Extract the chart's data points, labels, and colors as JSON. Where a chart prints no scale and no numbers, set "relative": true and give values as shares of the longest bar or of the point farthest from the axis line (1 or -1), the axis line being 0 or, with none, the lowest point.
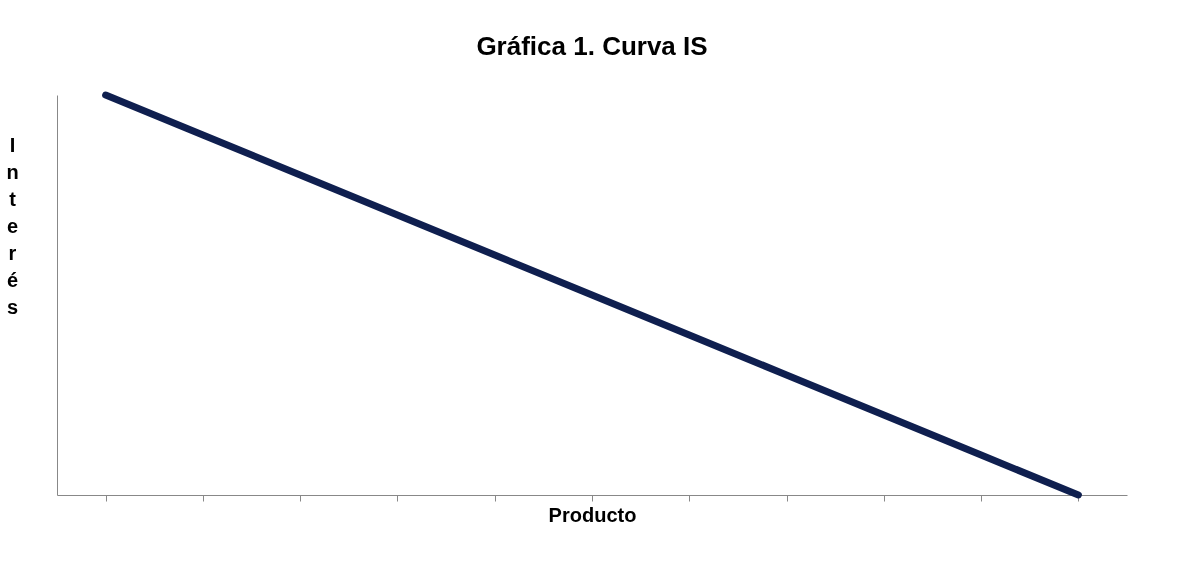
{
  "chart_data": {
    "type": "line",
    "title": "Gráfica 1. Curva IS",
    "xlabel": "Producto",
    "ylabel": "Interés",
    "relative": true,
    "tick_labels": false,
    "categories": [
      null,
      null,
      null,
      null,
      null,
      null,
      null,
      null,
      null,
      null,
      null
    ],
    "series": [
      {
        "color": "#0f1f4f",
        "values": [
          1,
          0.9,
          0.8,
          0.7,
          0.6,
          0.5,
          0.4,
          0.3,
          0.2,
          0.1,
          0
        ]
      }
    ]
  }
}
